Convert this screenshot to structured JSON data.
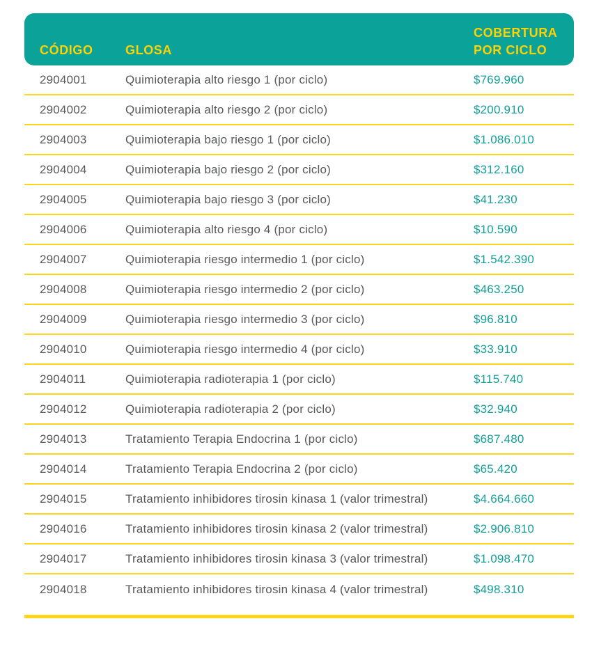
{
  "colors": {
    "header_background_teal": "#0ba29a",
    "header_text_yellow": "#ffd200",
    "grid_line_yellow": "#ffd41c",
    "body_text_gray": "#58595b",
    "value_text_teal": "#14a09a",
    "page_background": "#ffffff"
  },
  "table": {
    "columns": {
      "code": "CÓDIGO",
      "glosa": "GLOSA",
      "value": "COBERTURA POR CICLO"
    },
    "rows": [
      {
        "code": "2904001",
        "glosa": "Quimioterapia alto riesgo 1 (por ciclo)",
        "value": "$769.960"
      },
      {
        "code": "2904002",
        "glosa": "Quimioterapia alto riesgo 2 (por ciclo)",
        "value": "$200.910"
      },
      {
        "code": "2904003",
        "glosa": "Quimioterapia bajo riesgo 1 (por ciclo)",
        "value": "$1.086.010"
      },
      {
        "code": "2904004",
        "glosa": "Quimioterapia bajo riesgo 2 (por ciclo)",
        "value": "$312.160"
      },
      {
        "code": "2904005",
        "glosa": "Quimioterapia bajo riesgo 3 (por ciclo)",
        "value": "$41.230"
      },
      {
        "code": "2904006",
        "glosa": "Quimioterapia alto riesgo 4 (por ciclo)",
        "value": "$10.590"
      },
      {
        "code": "2904007",
        "glosa": "Quimioterapia riesgo intermedio 1 (por ciclo)",
        "value": "$1.542.390"
      },
      {
        "code": "2904008",
        "glosa": "Quimioterapia riesgo intermedio 2 (por ciclo)",
        "value": "$463.250"
      },
      {
        "code": "2904009",
        "glosa": "Quimioterapia riesgo intermedio 3 (por ciclo)",
        "value": "$96.810"
      },
      {
        "code": "2904010",
        "glosa": "Quimioterapia riesgo intermedio 4 (por ciclo)",
        "value": "$33.910"
      },
      {
        "code": "2904011",
        "glosa": "Quimioterapia radioterapia 1 (por ciclo)",
        "value": "$115.740"
      },
      {
        "code": "2904012",
        "glosa": "Quimioterapia radioterapia 2 (por ciclo)",
        "value": "$32.940"
      },
      {
        "code": "2904013",
        "glosa": "Tratamiento Terapia Endocrina 1 (por ciclo)",
        "value": "$687.480"
      },
      {
        "code": "2904014",
        "glosa": "Tratamiento Terapia Endocrina 2 (por ciclo)",
        "value": "$65.420"
      },
      {
        "code": "2904015",
        "glosa": "Tratamiento inhibidores tirosin kinasa 1 (valor trimestral)",
        "value": "$4.664.660"
      },
      {
        "code": "2904016",
        "glosa": "Tratamiento inhibidores tirosin kinasa 2 (valor trimestral)",
        "value": "$2.906.810"
      },
      {
        "code": "2904017",
        "glosa": "Tratamiento inhibidores tirosin kinasa 3 (valor trimestral)",
        "value": "$1.098.470"
      },
      {
        "code": "2904018",
        "glosa": "Tratamiento inhibidores tirosin kinasa 4 (valor trimestral)",
        "value": "$498.310"
      }
    ]
  }
}
